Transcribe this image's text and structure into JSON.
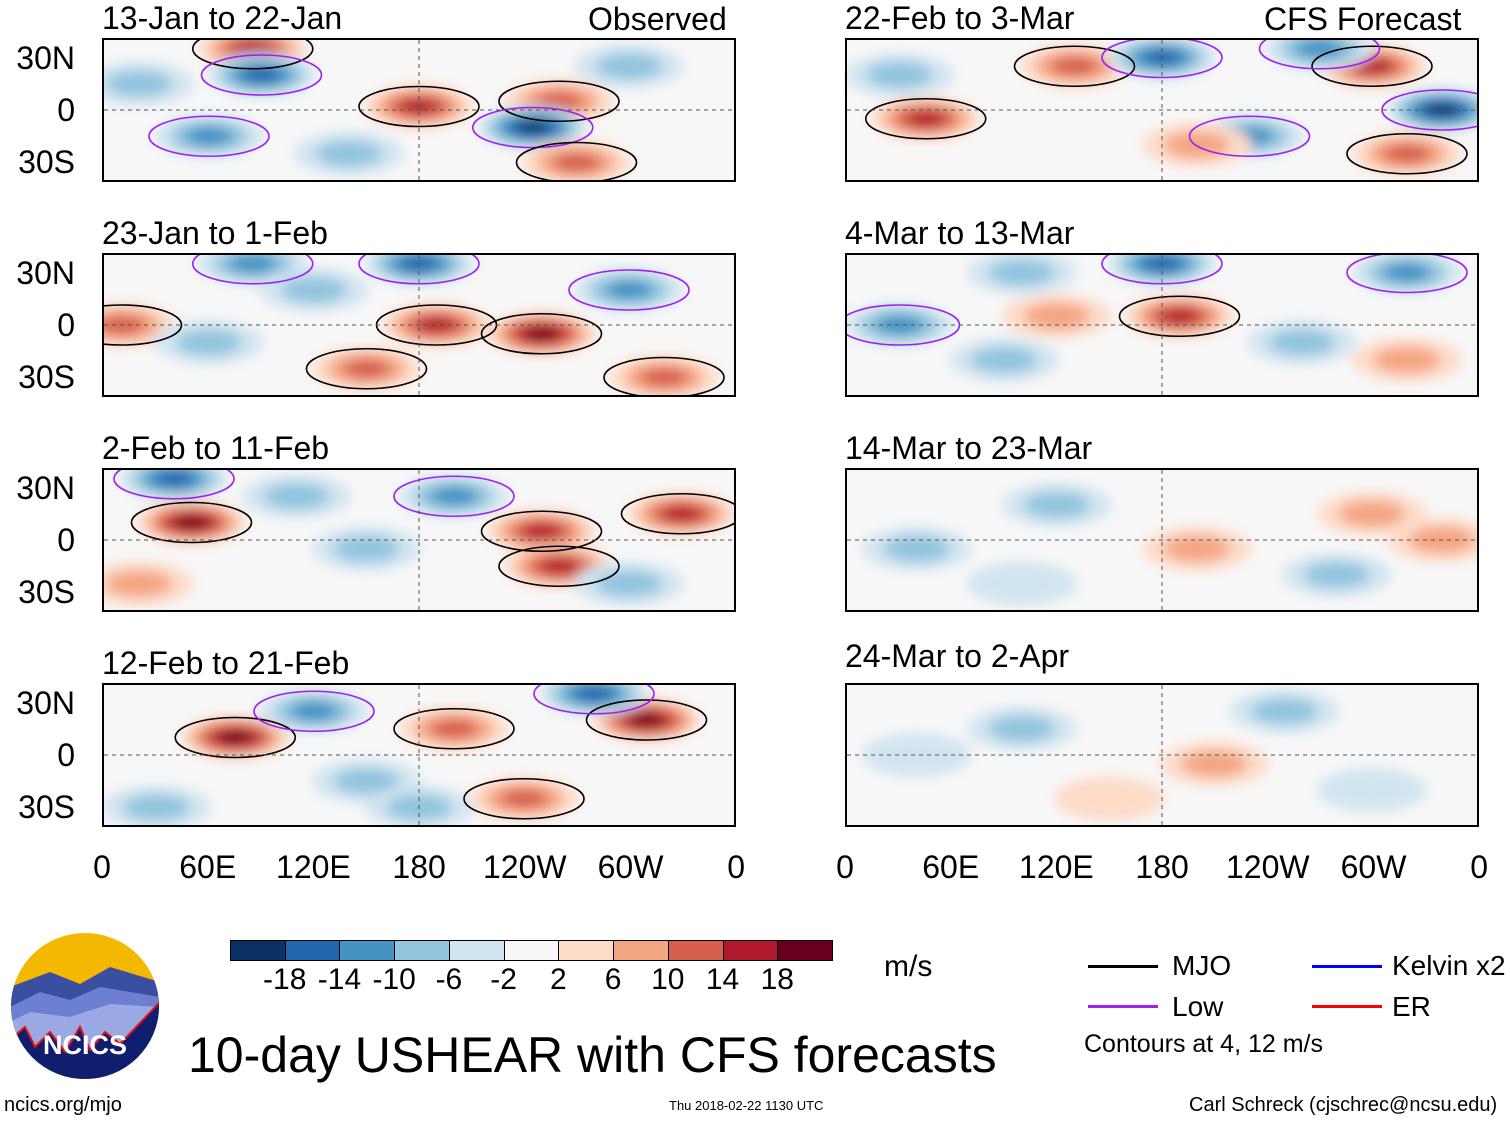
{
  "figure_title": "10-day USHEAR with CFS forecasts",
  "observed_label": "Observed",
  "forecast_label": "CFS Forecast",
  "y_ticks": [
    "30N",
    "0",
    "30S"
  ],
  "x_ticks": [
    "0",
    "60E",
    "120E",
    "180",
    "120W",
    "60W",
    "0"
  ],
  "colorbar": {
    "unit": "m/s",
    "labels": [
      "-18",
      "-14",
      "-10",
      "-6",
      "-2",
      "2",
      "6",
      "10",
      "14",
      "18"
    ],
    "colors": [
      "#0a3364",
      "#2166ac",
      "#4393c3",
      "#92c5de",
      "#d1e5f0",
      "#f7f7f7",
      "#fddbc7",
      "#f4a582",
      "#d6604d",
      "#b2182b",
      "#67001f"
    ]
  },
  "legend": {
    "items": [
      {
        "label": "MJO",
        "color": "#000000"
      },
      {
        "label": "Kelvin x2",
        "color": "#0000ff"
      },
      {
        "label": "Low",
        "color": "#a020f0"
      },
      {
        "label": "ER",
        "color": "#ff0000"
      }
    ],
    "contours_note": "Contours at 4, 12 m/s"
  },
  "logo_text": "NCICS",
  "footer": {
    "url": "ncics.org/mjo",
    "timestamp": "Thu 2018-02-22 1130 UTC",
    "author": "Carl Schreck (cjschrec@ncsu.edu)"
  },
  "chart_data": {
    "type": "heatmap",
    "variable": "USHEAR anomaly (m/s)",
    "lon_range": [
      0,
      360
    ],
    "lat_range": [
      -40,
      40
    ],
    "panels": [
      {
        "title": "13-Jan to 22-Jan",
        "group": "observed",
        "anomalies": [
          [
            85,
            35,
            16
          ],
          [
            180,
            2,
            16
          ],
          [
            260,
            5,
            12
          ],
          [
            90,
            20,
            -14
          ],
          [
            245,
            -10,
            -18
          ],
          [
            60,
            -15,
            -12
          ],
          [
            270,
            -30,
            10
          ],
          [
            140,
            -25,
            -8
          ],
          [
            300,
            25,
            -8
          ],
          [
            20,
            15,
            -6
          ]
        ]
      },
      {
        "title": "23-Jan to 1-Feb",
        "group": "observed",
        "anomalies": [
          [
            10,
            0,
            12
          ],
          [
            190,
            0,
            14
          ],
          [
            250,
            -5,
            18
          ],
          [
            85,
            35,
            -10
          ],
          [
            180,
            35,
            -14
          ],
          [
            300,
            20,
            -10
          ],
          [
            150,
            -25,
            10
          ],
          [
            60,
            -10,
            -8
          ],
          [
            320,
            -30,
            12
          ],
          [
            120,
            20,
            -8
          ]
        ]
      },
      {
        "title": "2-Feb to 11-Feb",
        "group": "observed",
        "anomalies": [
          [
            50,
            10,
            20
          ],
          [
            250,
            5,
            14
          ],
          [
            260,
            -15,
            16
          ],
          [
            40,
            35,
            -16
          ],
          [
            330,
            15,
            14
          ],
          [
            150,
            -5,
            -8
          ],
          [
            200,
            25,
            -10
          ],
          [
            110,
            25,
            -8
          ],
          [
            300,
            -25,
            -8
          ],
          [
            20,
            -25,
            8
          ]
        ]
      },
      {
        "title": "12-Feb to 21-Feb",
        "group": "observed",
        "anomalies": [
          [
            75,
            10,
            18
          ],
          [
            310,
            20,
            20
          ],
          [
            280,
            35,
            -14
          ],
          [
            200,
            15,
            10
          ],
          [
            150,
            -15,
            -8
          ],
          [
            240,
            -25,
            12
          ],
          [
            30,
            -30,
            -8
          ],
          [
            120,
            25,
            -10
          ],
          [
            180,
            -30,
            -8
          ]
        ]
      },
      {
        "title": "22-Feb to 3-Mar",
        "group": "forecast",
        "anomalies": [
          [
            45,
            -5,
            14
          ],
          [
            130,
            25,
            12
          ],
          [
            300,
            25,
            14
          ],
          [
            180,
            30,
            -16
          ],
          [
            340,
            0,
            -18
          ],
          [
            270,
            35,
            -12
          ],
          [
            230,
            -15,
            -10
          ],
          [
            30,
            20,
            -8
          ],
          [
            200,
            -20,
            6
          ],
          [
            320,
            -25,
            10
          ]
        ]
      },
      {
        "title": "4-Mar to 13-Mar",
        "group": "forecast",
        "anomalies": [
          [
            190,
            5,
            16
          ],
          [
            120,
            5,
            8
          ],
          [
            180,
            35,
            -16
          ],
          [
            30,
            0,
            -12
          ],
          [
            320,
            30,
            -10
          ],
          [
            260,
            -10,
            -8
          ],
          [
            90,
            -20,
            -8
          ],
          [
            320,
            -20,
            6
          ],
          [
            100,
            30,
            -6
          ]
        ]
      },
      {
        "title": "14-Mar to 23-Mar",
        "group": "forecast",
        "anomalies": [
          [
            200,
            -5,
            8
          ],
          [
            300,
            15,
            8
          ],
          [
            40,
            -5,
            -6
          ],
          [
            120,
            20,
            -6
          ],
          [
            280,
            -20,
            -6
          ],
          [
            100,
            -25,
            -4
          ],
          [
            340,
            0,
            6
          ]
        ]
      },
      {
        "title": "24-Mar to 2-Apr",
        "group": "forecast",
        "anomalies": [
          [
            210,
            -5,
            8
          ],
          [
            250,
            25,
            -6
          ],
          [
            100,
            15,
            -6
          ],
          [
            40,
            0,
            -4
          ],
          [
            300,
            -20,
            -4
          ],
          [
            150,
            -25,
            4
          ]
        ]
      }
    ]
  }
}
